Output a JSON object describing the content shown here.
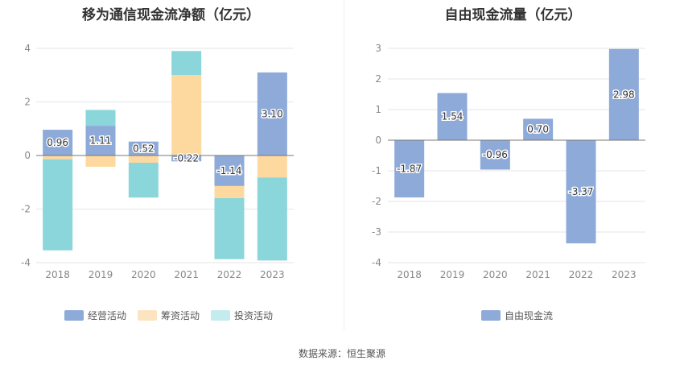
{
  "source_text": "数据来源：恒生聚源",
  "charts": [
    {
      "title": "移为通信现金流净额（亿元）"
    },
    {
      "title": "自由现金流量（亿元）"
    }
  ],
  "chart_data": [
    {
      "type": "bar",
      "stacked": true,
      "title": "移为通信现金流净额（亿元）",
      "categories": [
        "2018",
        "2019",
        "2020",
        "2021",
        "2022",
        "2023"
      ],
      "series": [
        {
          "name": "经营活动",
          "color": "#8eaad9",
          "values": [
            0.96,
            1.11,
            0.52,
            -0.22,
            -1.14,
            3.1
          ],
          "labels": [
            "0.96",
            "1.11",
            "0.52",
            "-0.22",
            "-1.14",
            "3.10"
          ]
        },
        {
          "name": "筹资活动",
          "color": "#fdd9a0",
          "values": [
            -0.14,
            -0.42,
            -0.27,
            3.0,
            -0.45,
            -0.82
          ]
        },
        {
          "name": "投资活动",
          "color": "#8ad6da",
          "values": [
            -3.4,
            0.59,
            -1.3,
            0.9,
            -2.28,
            -3.1
          ]
        }
      ],
      "legend_colors": [
        "#8eaad9",
        "#fde4c0",
        "#c4ecee"
      ],
      "yticks": [
        4,
        2,
        0,
        -2,
        -4
      ],
      "ylim": [
        -4,
        4
      ],
      "grid": true,
      "legend_position": "bottom"
    },
    {
      "type": "bar",
      "title": "自由现金流量（亿元）",
      "categories": [
        "2018",
        "2019",
        "2020",
        "2021",
        "2022",
        "2023"
      ],
      "series": [
        {
          "name": "自由现金流",
          "color": "#8eaad9",
          "values": [
            -1.87,
            1.54,
            -0.96,
            0.7,
            -3.37,
            2.98
          ],
          "labels": [
            "-1.87",
            "1.54",
            "-0.96",
            "0.70",
            "-3.37",
            "2.98"
          ]
        }
      ],
      "yticks": [
        3,
        2,
        1,
        0,
        -1,
        -2,
        -3,
        -4
      ],
      "ylim": [
        -4,
        3
      ],
      "grid": true,
      "legend_position": "bottom"
    }
  ]
}
